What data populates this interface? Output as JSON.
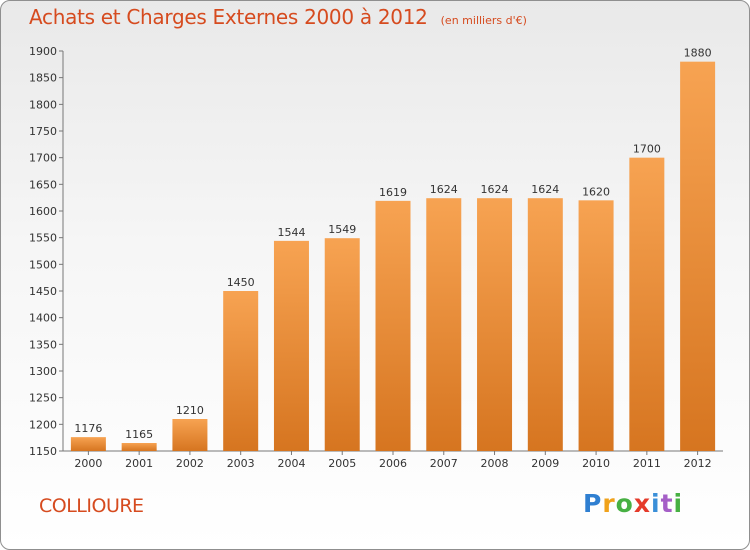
{
  "header": {
    "title": "Achats et Charges Externes 2000 à 2012",
    "subtitle": "(en milliers d'€)"
  },
  "footer": {
    "commune": "COLLIOURE",
    "logo_text": "Proxiti"
  },
  "colors": {
    "title": "#d64b1f",
    "bar_top": "#f7a352",
    "bar_bottom": "#d67520",
    "axis": "#777777"
  },
  "chart_data": {
    "type": "bar",
    "title": "Achats et Charges Externes 2000 à 2012",
    "subtitle": "(en milliers d'€)",
    "categories": [
      "2000",
      "2001",
      "2002",
      "2003",
      "2004",
      "2005",
      "2006",
      "2007",
      "2008",
      "2009",
      "2010",
      "2011",
      "2012"
    ],
    "values": [
      1176,
      1165,
      1210,
      1450,
      1544,
      1549,
      1619,
      1624,
      1624,
      1624,
      1620,
      1700,
      1880
    ],
    "ylim": [
      1150,
      1900
    ],
    "yticks": [
      1150,
      1200,
      1250,
      1300,
      1350,
      1400,
      1450,
      1500,
      1550,
      1600,
      1650,
      1700,
      1750,
      1800,
      1850,
      1900
    ],
    "grid": false,
    "xlabel": "",
    "ylabel": ""
  }
}
